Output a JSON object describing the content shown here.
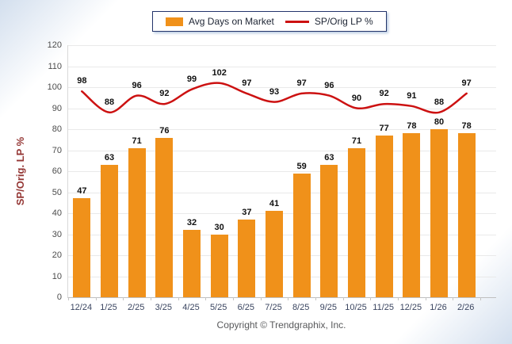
{
  "legend": {
    "items": [
      {
        "label": "Avg Days on Market",
        "swatch": "square",
        "color": "#F0911A"
      },
      {
        "label": "SP/Orig LP %",
        "swatch": "line",
        "color": "#CC1111"
      }
    ]
  },
  "chart_data": {
    "type": "bar",
    "subtype": "bar-with-line-overlay",
    "categories": [
      "12/24",
      "1/25",
      "2/25",
      "3/25",
      "4/25",
      "5/25",
      "6/25",
      "7/25",
      "8/25",
      "9/25",
      "10/25",
      "11/25",
      "12/25",
      "1/26",
      "2/26"
    ],
    "series": [
      {
        "name": "Avg Days on Market",
        "type": "bar",
        "color": "#F0911A",
        "values": [
          47,
          63,
          71,
          76,
          32,
          30,
          37,
          41,
          59,
          63,
          71,
          77,
          78,
          80,
          78
        ]
      },
      {
        "name": "SP/Orig LP %",
        "type": "line",
        "color": "#CC1111",
        "values": [
          98,
          88,
          96,
          92,
          99,
          102,
          97,
          93,
          97,
          96,
          90,
          92,
          91,
          88,
          97
        ]
      }
    ],
    "title": "",
    "xlabel": "",
    "ylabel": "SP/Orig. LP %",
    "ylim": [
      0,
      120
    ],
    "ytick_step": 10,
    "grid": true,
    "legend_position": "top-center",
    "value_labels": true
  },
  "footer": {
    "copyright": "Copyright © Trendgraphix, Inc."
  }
}
